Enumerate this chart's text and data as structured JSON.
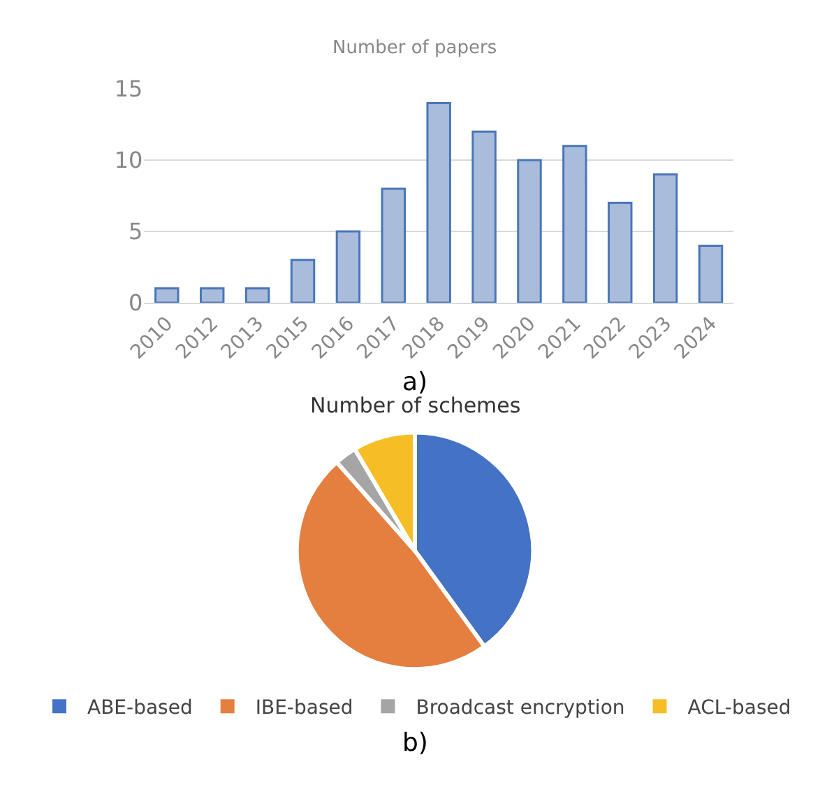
{
  "chart_data": [
    {
      "type": "bar",
      "title": "Number of papers",
      "categories": [
        "2010",
        "2012",
        "2013",
        "2015",
        "2016",
        "2017",
        "2018",
        "2019",
        "2020",
        "2021",
        "2022",
        "2023",
        "2024"
      ],
      "values": [
        1,
        1,
        1,
        3,
        5,
        8,
        14,
        12,
        10,
        11,
        7,
        9,
        4
      ],
      "color": "#a9bcdc",
      "ylim": [
        0,
        15
      ],
      "yticks": [
        0,
        5,
        10,
        15
      ],
      "grid": "y",
      "annotations": [
        "a)"
      ]
    },
    {
      "type": "pie",
      "title": "Number of schemes",
      "categories": [
        "ABE-based",
        "IBE-based",
        "Broadcast encryption",
        "ACL-based"
      ],
      "values": [
        40,
        48.5,
        3,
        8.5
      ],
      "colors": [
        "#4472c4",
        "#e47f3f",
        "#a5a5a5",
        "#f6be25"
      ],
      "legend": "bottom",
      "annotations": [
        "b)"
      ]
    }
  ]
}
